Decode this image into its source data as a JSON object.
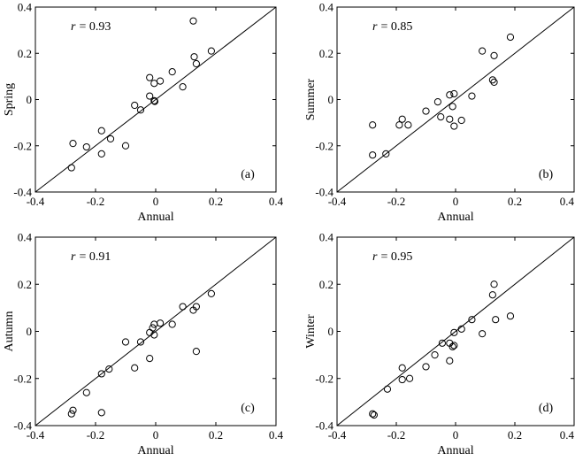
{
  "chart_data": [
    {
      "type": "scatter",
      "xlabel": "Annual",
      "ylabel": "Spring",
      "r_label": "r",
      "r_value": "= 0.93",
      "panel_tag": "(a)",
      "xlim": [
        -0.4,
        0.4
      ],
      "ylim": [
        -0.4,
        0.4
      ],
      "xticks": [
        -0.4,
        -0.2,
        0,
        0.2,
        0.4
      ],
      "yticks": [
        -0.4,
        -0.2,
        0,
        0.2,
        0.4
      ],
      "xtick_labels": [
        "-0.4",
        "-0.2",
        "0",
        "0.2",
        "0.4"
      ],
      "ytick_labels": [
        "-0.4",
        "-0.2",
        "0",
        "0.2",
        "0.4"
      ],
      "reference_line": "1:1",
      "points": [
        [
          0.125,
          0.34
        ],
        [
          0.185,
          0.21
        ],
        [
          0.128,
          0.185
        ],
        [
          0.135,
          0.155
        ],
        [
          0.055,
          0.12
        ],
        [
          -0.02,
          0.095
        ],
        [
          0.015,
          0.08
        ],
        [
          -0.005,
          0.07
        ],
        [
          0.09,
          0.055
        ],
        [
          -0.02,
          0.015
        ],
        [
          -0.005,
          -0.005
        ],
        [
          -0.003,
          -0.008
        ],
        [
          -0.07,
          -0.025
        ],
        [
          -0.05,
          -0.045
        ],
        [
          -0.15,
          -0.17
        ],
        [
          -0.18,
          -0.135
        ],
        [
          -0.1,
          -0.2
        ],
        [
          -0.23,
          -0.205
        ],
        [
          -0.275,
          -0.19
        ],
        [
          -0.18,
          -0.235
        ],
        [
          -0.28,
          -0.295
        ]
      ]
    },
    {
      "type": "scatter",
      "xlabel": "Annual",
      "ylabel": "Summer",
      "r_label": "r",
      "r_value": "= 0.85",
      "panel_tag": "(b)",
      "xlim": [
        -0.4,
        0.4
      ],
      "ylim": [
        -0.4,
        0.4
      ],
      "xticks": [
        -0.4,
        -0.2,
        0,
        0.2,
        0.4
      ],
      "yticks": [
        -0.4,
        -0.2,
        0,
        0.2,
        0.4
      ],
      "xtick_labels": [
        "-0.4",
        "-0.2",
        "0",
        "0.2",
        "0.4"
      ],
      "ytick_labels": [
        "-0.4",
        "-0.2",
        "0",
        "0.2",
        "0.4"
      ],
      "reference_line": "1:1",
      "points": [
        [
          0.185,
          0.27
        ],
        [
          0.09,
          0.21
        ],
        [
          0.13,
          0.19
        ],
        [
          0.125,
          0.085
        ],
        [
          0.13,
          0.075
        ],
        [
          0.055,
          0.015
        ],
        [
          -0.02,
          0.02
        ],
        [
          -0.005,
          0.025
        ],
        [
          -0.06,
          -0.01
        ],
        [
          0.02,
          -0.09
        ],
        [
          -0.01,
          -0.03
        ],
        [
          -0.1,
          -0.05
        ],
        [
          -0.05,
          -0.075
        ],
        [
          -0.02,
          -0.085
        ],
        [
          -0.005,
          -0.115
        ],
        [
          -0.18,
          -0.085
        ],
        [
          -0.16,
          -0.11
        ],
        [
          -0.19,
          -0.11
        ],
        [
          -0.28,
          -0.11
        ],
        [
          -0.235,
          -0.235
        ],
        [
          -0.28,
          -0.24
        ]
      ]
    },
    {
      "type": "scatter",
      "xlabel": "Annual",
      "ylabel": "Autumn",
      "r_label": "r",
      "r_value": "= 0.91",
      "panel_tag": "(c)",
      "xlim": [
        -0.4,
        0.4
      ],
      "ylim": [
        -0.4,
        0.4
      ],
      "xticks": [
        -0.4,
        -0.2,
        0,
        0.2,
        0.4
      ],
      "yticks": [
        -0.4,
        -0.2,
        0,
        0.2,
        0.4
      ],
      "xtick_labels": [
        "-0.4",
        "-0.2",
        "0",
        "0.2",
        "0.4"
      ],
      "ytick_labels": [
        "-0.4",
        "-0.2",
        "0",
        "0.2",
        "0.4"
      ],
      "reference_line": "1:1",
      "points": [
        [
          0.185,
          0.16
        ],
        [
          0.09,
          0.105
        ],
        [
          0.135,
          0.105
        ],
        [
          0.125,
          0.09
        ],
        [
          0.015,
          0.035
        ],
        [
          0.055,
          0.03
        ],
        [
          -0.005,
          0.03
        ],
        [
          -0.01,
          0.015
        ],
        [
          -0.02,
          -0.005
        ],
        [
          -0.005,
          -0.015
        ],
        [
          -0.1,
          -0.045
        ],
        [
          -0.05,
          -0.045
        ],
        [
          -0.02,
          -0.115
        ],
        [
          0.135,
          -0.085
        ],
        [
          -0.07,
          -0.155
        ],
        [
          -0.155,
          -0.16
        ],
        [
          -0.18,
          -0.18
        ],
        [
          -0.23,
          -0.26
        ],
        [
          -0.18,
          -0.345
        ],
        [
          -0.275,
          -0.335
        ],
        [
          -0.28,
          -0.35
        ]
      ]
    },
    {
      "type": "scatter",
      "xlabel": "Annual",
      "ylabel": "Winter",
      "r_label": "r",
      "r_value": "= 0.95",
      "panel_tag": "(d)",
      "xlim": [
        -0.4,
        0.4
      ],
      "ylim": [
        -0.4,
        0.4
      ],
      "xticks": [
        -0.4,
        -0.2,
        0,
        0.2,
        0.4
      ],
      "yticks": [
        -0.4,
        -0.2,
        0,
        0.2,
        0.4
      ],
      "xtick_labels": [
        "-0.4",
        "-0.2",
        "0",
        "0.2",
        "0.4"
      ],
      "ytick_labels": [
        "-0.4",
        "-0.2",
        "0",
        "0.2",
        "0.4"
      ],
      "reference_line": "1:1",
      "points": [
        [
          0.13,
          0.2
        ],
        [
          0.125,
          0.155
        ],
        [
          0.185,
          0.065
        ],
        [
          0.135,
          0.05
        ],
        [
          0.055,
          0.05
        ],
        [
          0.02,
          0.01
        ],
        [
          -0.005,
          -0.005
        ],
        [
          0.09,
          -0.01
        ],
        [
          -0.045,
          -0.05
        ],
        [
          -0.02,
          -0.05
        ],
        [
          -0.005,
          -0.06
        ],
        [
          -0.01,
          -0.065
        ],
        [
          -0.02,
          -0.125
        ],
        [
          -0.07,
          -0.1
        ],
        [
          -0.1,
          -0.15
        ],
        [
          -0.18,
          -0.155
        ],
        [
          -0.155,
          -0.2
        ],
        [
          -0.18,
          -0.205
        ],
        [
          -0.23,
          -0.245
        ],
        [
          -0.28,
          -0.35
        ],
        [
          -0.275,
          -0.355
        ]
      ]
    }
  ]
}
